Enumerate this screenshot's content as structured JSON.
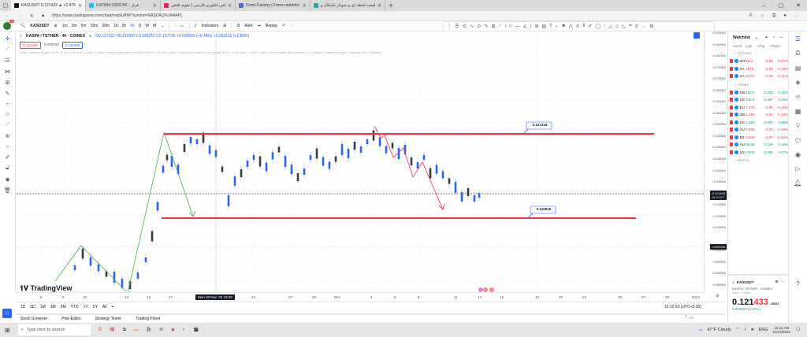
{
  "browser": {
    "tabs": [
      {
        "label": "KASUSDT 0.121433 ▲ +2.47% U",
        "active": true,
        "color": "#131722"
      },
      {
        "label": "0.87604 USDCHF - فراز",
        "active": false,
        "color": "#29b6f6"
      },
      {
        "label": "فارکس فکتوری فارسی | تقویم اقتص",
        "active": false,
        "color": "#e91e63"
      },
      {
        "label": "Forex Factory | Forex markets fo",
        "active": false,
        "color": "#5c6bc0"
      },
      {
        "label": "قیمت لحظه ای و نمودار تکنیکال و",
        "active": false,
        "color": "#26a69a"
      }
    ],
    "url": "https://www.tradingview.com/chart/noq9uRM/?symbol=NASDAQ%3AAAPL",
    "window_controls": [
      "–",
      "▢",
      "✕"
    ]
  },
  "toolbar": {
    "notification_count": "11",
    "symbol": "KASUSDT",
    "timeframes": [
      "1m",
      "3m",
      "5m",
      "15m",
      "30m",
      "1h",
      "2h",
      "4h",
      "D",
      "W",
      "M"
    ],
    "selected_timeframe": "4h",
    "indicators_label": "Indicators",
    "alert_label": "Alert",
    "replay_label": "Replay"
  },
  "legend": {
    "title": "KASPA / TETHER · 4h · COINEX",
    "ohlc": "O0.137162 H0.142687 L0.136357 C0.137705 +0.000656 (+0.48%) +0.003115 (+2.80%)",
    "bid": "0.121430",
    "spread": "0.000030",
    "ask": "0.121460",
    "indicator_text": "Asian Session Range 20 00 02 00 11 30 blue 1 solid 2 dotted orange dotted blue normal 03 00 07 00 teal 1 solid 2 dotted teal dotted teal normal 08 00 12 00 silver 1 solid 2 dotted silver dotted silver normal 1 21 yellow 1 dashed orange 1 dashed olive 1 dashed"
  },
  "price_scale": {
    "ticks": [
      "0.190000",
      "0.185000",
      "0.180000",
      "0.175000",
      "0.170000",
      "0.165000",
      "0.160000",
      "0.155000",
      "0.150000",
      "0.145000",
      "0.140000",
      "0.135000",
      "0.130000",
      "0.125000",
      "0.115000",
      "0.110000",
      "0.105000",
      "0.095000",
      "0.090000",
      "0.085000",
      "0.080000"
    ],
    "last_price": "0.121433",
    "countdown": "01:17:07",
    "marker_price": "0.099236"
  },
  "annotations": {
    "resistance_label": "0.147316",
    "support_label": "0.110919"
  },
  "time_axis": {
    "ticks": [
      "6",
      "8",
      "10",
      "13",
      "15",
      "17",
      "24",
      "27",
      "29",
      "Dec",
      "4",
      "6",
      "8",
      "11",
      "13",
      "15",
      "18",
      "20",
      "22",
      "25",
      "27",
      "29",
      "2024"
    ],
    "cursor_label": "Mon 20 Nov '23  19:30"
  },
  "range_bar": {
    "ranges": [
      "1D",
      "5D",
      "1M",
      "3M",
      "6M",
      "YTD",
      "1Y",
      "5Y",
      "All"
    ],
    "clock": "10:12:53 (UTC+3:30)"
  },
  "bottom_panel": {
    "tabs": [
      "Stock Screener",
      "Pine Editor",
      "Strategy Tester",
      "Trading Panel"
    ]
  },
  "watchlist": {
    "title": "Watchlist",
    "columns": [
      "Symb",
      "Last",
      "Chg",
      "Chg%"
    ],
    "groups": [
      {
        "name": "STOCKS",
        "rows": [
          {
            "sym": "WT",
            "last": "68.3",
            "chg": "-0.59",
            "pct": "-0.87%",
            "dir": "neg"
          },
          {
            "sym": "XA",
            "last": "1975.",
            "chg": "-3.59",
            "pct": "-0.18%",
            "dir": "neg"
          },
          {
            "sym": "XA",
            "last": "22.67",
            "chg": "-0.09",
            "pct": "-0.41%",
            "dir": "neg"
          }
        ]
      },
      {
        "name": "FOREX",
        "rows": [
          {
            "sym": "GB",
            "last": "182.9",
            "chg": "0.226",
            "pct": "0.12%",
            "dir": "pos"
          },
          {
            "sym": "US",
            "last": "145.8",
            "chg": "0.357",
            "pct": "0.25%",
            "dir": "pos"
          },
          {
            "sym": "EU",
            "last": "1.078",
            "chg": "-0.00",
            "pct": "-0.10%",
            "dir": "neg"
          },
          {
            "sym": "GB",
            "last": "1.254",
            "chg": "-0.00",
            "pct": "-0.10%",
            "dir": "neg"
          },
          {
            "sym": "US",
            "last": "1.359",
            "chg": "0.000",
            "pct": "0.06%",
            "dir": "pos"
          },
          {
            "sym": "AU",
            "last": "0.655",
            "chg": "-0.00",
            "pct": "-0.09%",
            "dir": "neg"
          },
          {
            "sym": "NZ",
            "last": "0.609",
            "chg": "-0.00",
            "pct": "-0.62%",
            "dir": "neg"
          },
          {
            "sym": "AU",
            "last": "95.56",
            "chg": "0.149",
            "pct": "0.16%",
            "dir": "pos"
          },
          {
            "sym": "US",
            "last": "0.876",
            "chg": "0.000",
            "pct": "0.07%",
            "dir": "pos"
          }
        ]
      },
      {
        "name": "CRYPTO",
        "rows": []
      }
    ]
  },
  "detail": {
    "symbol": "KASUSDT",
    "name": "KASPA / TETHER · COINEX",
    "type": "Spot · Crypto",
    "price_main": "0.121",
    "price_red": "433",
    "currency": "USDT",
    "change": "0.002923 (2.47%)"
  },
  "taskbar": {
    "search_placeholder": "Type here to search",
    "weather": "47°F  Cloudy",
    "lang": "ENG",
    "time": "10:12 AM",
    "date": "12/13/2023"
  },
  "brand": {
    "watermark": "TradingView"
  },
  "colors": {
    "accent": "#2962ff",
    "up": "#2962ff",
    "down": "#363a45",
    "level": "#f23645",
    "green_line": "#4caf50"
  }
}
